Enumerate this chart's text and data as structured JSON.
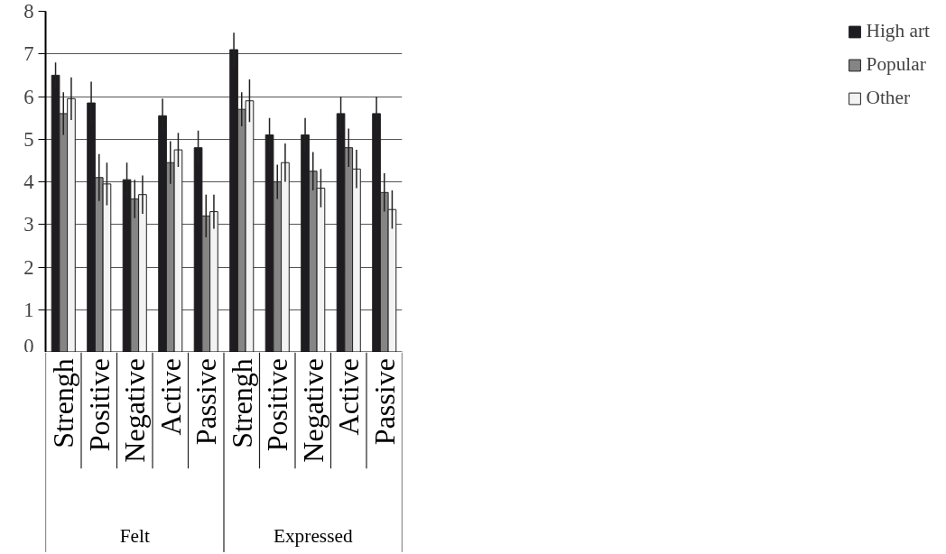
{
  "chart_data": {
    "type": "bar",
    "categories": [
      "Strengh",
      "Positive",
      "Negative",
      "Active",
      "Passive",
      "Strengh",
      "Positive",
      "Negative",
      "Active",
      "Passive"
    ],
    "series": [
      {
        "name": "High art",
        "color": "#1e1c20",
        "values": [
          6.5,
          5.85,
          4.05,
          5.55,
          4.8,
          7.1,
          5.1,
          5.1,
          5.6,
          5.6
        ],
        "errors": [
          0.3,
          0.5,
          0.4,
          0.4,
          0.4,
          0.4,
          0.4,
          0.4,
          0.4,
          0.4
        ]
      },
      {
        "name": "Popular",
        "color": "#858586",
        "values": [
          5.6,
          4.1,
          3.6,
          4.45,
          3.2,
          5.7,
          4.0,
          4.25,
          4.8,
          3.75
        ],
        "errors": [
          0.5,
          0.55,
          0.45,
          0.5,
          0.5,
          0.4,
          0.4,
          0.45,
          0.45,
          0.45
        ]
      },
      {
        "name": "Other",
        "color": "#f3f3f3",
        "values": [
          5.95,
          3.95,
          3.7,
          4.75,
          3.3,
          5.9,
          4.45,
          3.85,
          4.3,
          3.35
        ],
        "errors": [
          0.5,
          0.5,
          0.45,
          0.4,
          0.4,
          0.5,
          0.45,
          0.45,
          0.45,
          0.45
        ]
      }
    ],
    "annotations": [
      "Felt",
      "Expressed"
    ],
    "ylim": [
      0,
      8
    ],
    "yticks": [
      0,
      1,
      2,
      3,
      4,
      5,
      6,
      7,
      8
    ],
    "grid": "y",
    "legend": "right"
  }
}
